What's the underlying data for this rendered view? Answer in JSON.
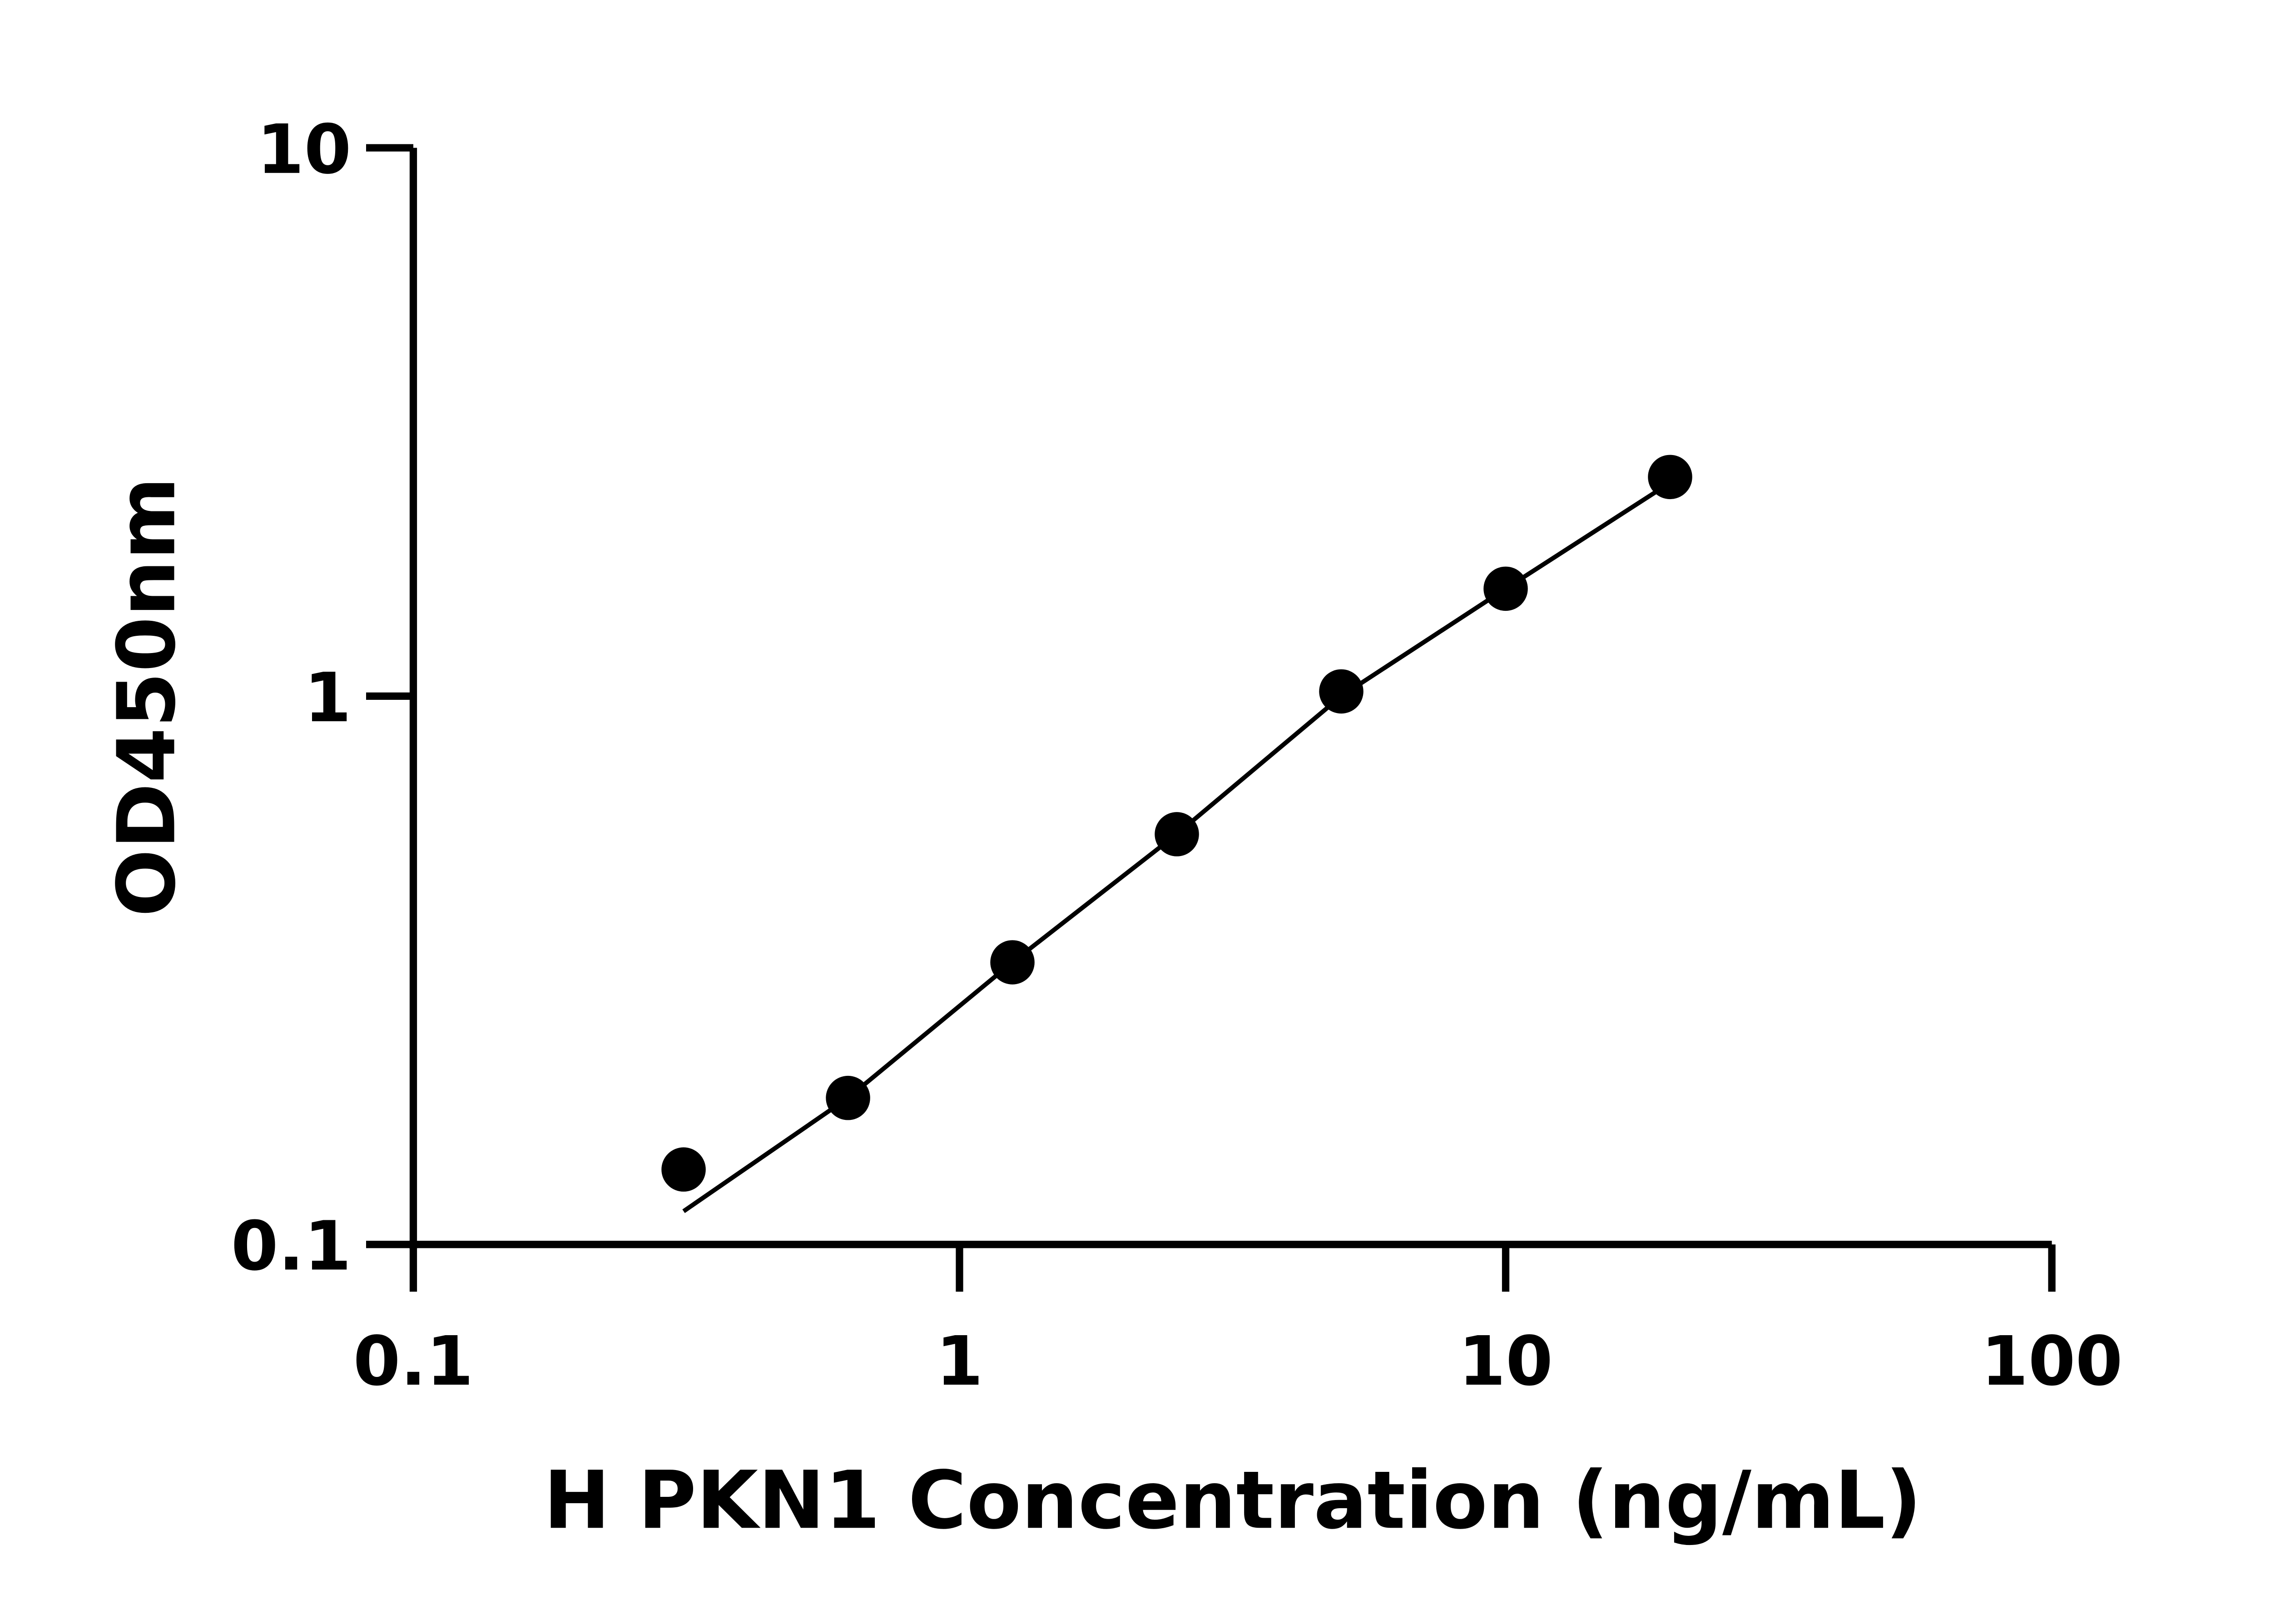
{
  "chart_data": {
    "type": "scatter",
    "title": "",
    "xlabel": "H PKN1 Concentration (ng/mL)",
    "ylabel": "OD450nm",
    "x_scale": "log",
    "y_scale": "log",
    "xlim": [
      0.1,
      100
    ],
    "ylim": [
      0.1,
      10
    ],
    "x_ticks": [
      "0.1",
      "1",
      "10",
      "100"
    ],
    "y_ticks": [
      "0.1",
      "1",
      "10"
    ],
    "grid": false,
    "legend": "none",
    "marker_color": "#000000",
    "line_color": "#000000",
    "points": [
      {
        "x": 0.3125,
        "y": 0.137
      },
      {
        "x": 0.625,
        "y": 0.185
      },
      {
        "x": 1.25,
        "y": 0.327
      },
      {
        "x": 2.5,
        "y": 0.56
      },
      {
        "x": 5,
        "y": 1.02
      },
      {
        "x": 10,
        "y": 1.57
      },
      {
        "x": 20,
        "y": 2.51
      }
    ],
    "fit_curve": [
      {
        "x": 0.3125,
        "y": 0.115
      },
      {
        "x": 0.625,
        "y": 0.185
      },
      {
        "x": 1.25,
        "y": 0.327
      },
      {
        "x": 2.5,
        "y": 0.56
      },
      {
        "x": 5,
        "y": 1.0
      },
      {
        "x": 10,
        "y": 1.57
      },
      {
        "x": 20,
        "y": 2.45
      }
    ]
  }
}
